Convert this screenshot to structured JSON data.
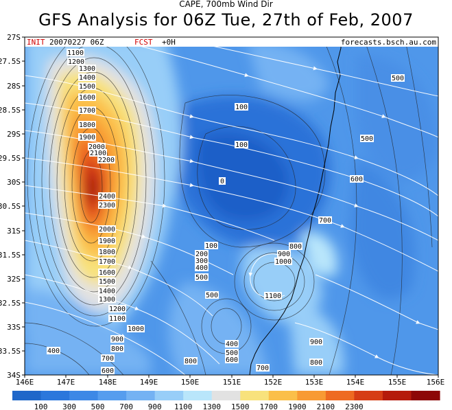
{
  "header": {
    "supertitle": "CAPE, 700mb Wind Dir",
    "title": "GFS Analysis for 06Z Tue, 27th of Feb, 2007",
    "init_label": "INIT",
    "init_value": "20070227 06Z",
    "fcst_label": "FCST",
    "fcst_value": "+0H",
    "source": "forecasts.bsch.au.com"
  },
  "axes": {
    "lat_labels": [
      "27S",
      "27.5S",
      "28S",
      "28.5S",
      "29S",
      "29.5S",
      "30S",
      "30.5S",
      "31S",
      "31.5S",
      "32S",
      "32.5S",
      "33S",
      "33.5S",
      "34S"
    ],
    "lon_labels": [
      "146E",
      "147E",
      "148E",
      "149E",
      "150E",
      "151E",
      "152E",
      "153E",
      "154E",
      "155E",
      "156E"
    ]
  },
  "colorbar": {
    "colors": [
      "#1f67c9",
      "#2b77dc",
      "#3d88e6",
      "#569dee",
      "#74b2f3",
      "#98cef8",
      "#b9e6fb",
      "#e2e2e2",
      "#f8e27c",
      "#fbbf49",
      "#f89a33",
      "#ee6a21",
      "#d63d15",
      "#b51a0b",
      "#8d0707"
    ],
    "tick_labels": [
      "100",
      "300",
      "500",
      "700",
      "900",
      "1100",
      "1300",
      "1500",
      "1700",
      "1900",
      "2100",
      "2300"
    ]
  },
  "contour_labels": [
    {
      "text": "1100"
    },
    {
      "text": "1200"
    },
    {
      "text": "1300"
    },
    {
      "text": "1400"
    },
    {
      "text": "1500"
    },
    {
      "text": "1600"
    },
    {
      "text": "1700"
    },
    {
      "text": "1800"
    },
    {
      "text": "1900"
    },
    {
      "text": "2000"
    },
    {
      "text": "2100"
    },
    {
      "text": "2200"
    },
    {
      "text": "2400"
    },
    {
      "text": "2300"
    },
    {
      "text": "2000"
    },
    {
      "text": "1900"
    },
    {
      "text": "1800"
    },
    {
      "text": "1700"
    },
    {
      "text": "1600"
    },
    {
      "text": "1500"
    },
    {
      "text": "1400"
    },
    {
      "text": "1300"
    },
    {
      "text": "1200"
    },
    {
      "text": "1100"
    },
    {
      "text": "1000"
    },
    {
      "text": "900"
    },
    {
      "text": "800"
    },
    {
      "text": "700"
    },
    {
      "text": "600"
    },
    {
      "text": "400"
    },
    {
      "text": "100"
    },
    {
      "text": "100"
    },
    {
      "text": "0"
    },
    {
      "text": "100"
    },
    {
      "text": "200"
    },
    {
      "text": "300"
    },
    {
      "text": "400"
    },
    {
      "text": "500"
    },
    {
      "text": "500"
    },
    {
      "text": "700"
    },
    {
      "text": "800"
    },
    {
      "text": "900"
    },
    {
      "text": "1000"
    },
    {
      "text": "1100"
    },
    {
      "text": "400"
    },
    {
      "text": "500"
    },
    {
      "text": "600"
    },
    {
      "text": "700"
    },
    {
      "text": "800"
    },
    {
      "text": "900"
    },
    {
      "text": "800"
    },
    {
      "text": "500"
    },
    {
      "text": "500"
    },
    {
      "text": "600"
    }
  ]
}
